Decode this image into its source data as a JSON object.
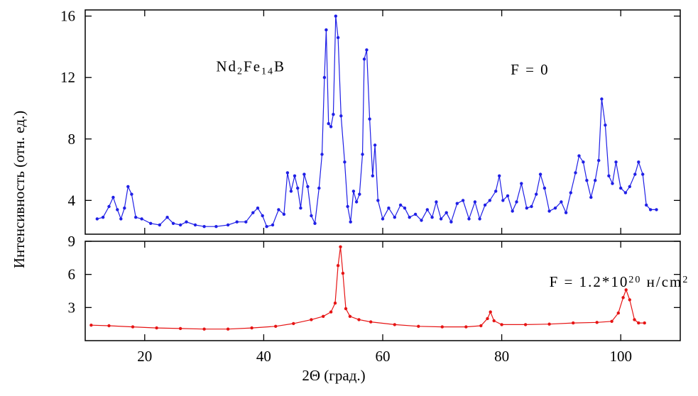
{
  "chart_data": {
    "type": "line",
    "xlabel": "2Θ (град.)",
    "ylabel": "Интенсивность (отн. ед.)",
    "xlim": [
      10,
      110
    ],
    "x_ticks": [
      20,
      40,
      60,
      80,
      100
    ],
    "grid": false,
    "panels": [
      {
        "name": "top",
        "ylim": [
          1.8,
          16.4
        ],
        "y_ticks": [
          4,
          8,
          12,
          16
        ],
        "annotations": [
          {
            "kind": "formula",
            "parts": [
              {
                "text": "Nd",
                "shift": "none"
              },
              {
                "text": "2",
                "shift": "sub"
              },
              {
                "text": "Fe",
                "shift": "none"
              },
              {
                "text": "14",
                "shift": "sub"
              },
              {
                "text": "B",
                "shift": "none"
              }
            ],
            "x": 32,
            "y": 12.4
          },
          {
            "kind": "plain",
            "parts": [
              {
                "text": "F = 0",
                "shift": "none"
              }
            ],
            "x": 81.5,
            "y": 12.2
          }
        ],
        "series": [
          {
            "name": "",
            "color": "#1f1fe6",
            "points": [
              [
                12,
                2.8
              ],
              [
                13,
                2.9
              ],
              [
                14,
                3.6
              ],
              [
                14.7,
                4.2
              ],
              [
                15.4,
                3.4
              ],
              [
                16,
                2.8
              ],
              [
                16.6,
                3.5
              ],
              [
                17.2,
                4.9
              ],
              [
                17.8,
                4.4
              ],
              [
                18.5,
                2.9
              ],
              [
                19.5,
                2.8
              ],
              [
                21,
                2.5
              ],
              [
                22.5,
                2.4
              ],
              [
                23.8,
                2.9
              ],
              [
                24.8,
                2.5
              ],
              [
                26,
                2.4
              ],
              [
                27,
                2.6
              ],
              [
                28.5,
                2.4
              ],
              [
                30,
                2.3
              ],
              [
                32,
                2.3
              ],
              [
                34,
                2.4
              ],
              [
                35.5,
                2.6
              ],
              [
                37,
                2.6
              ],
              [
                38.2,
                3.2
              ],
              [
                39,
                3.5
              ],
              [
                39.8,
                3.0
              ],
              [
                40.5,
                2.3
              ],
              [
                41.5,
                2.4
              ],
              [
                42.5,
                3.4
              ],
              [
                43.4,
                3.1
              ],
              [
                44,
                5.8
              ],
              [
                44.6,
                4.6
              ],
              [
                45.2,
                5.6
              ],
              [
                45.7,
                4.8
              ],
              [
                46.2,
                3.5
              ],
              [
                46.8,
                5.7
              ],
              [
                47.4,
                4.9
              ],
              [
                48,
                3.0
              ],
              [
                48.6,
                2.5
              ],
              [
                49.3,
                4.8
              ],
              [
                49.8,
                7.0
              ],
              [
                50.2,
                12.0
              ],
              [
                50.5,
                15.1
              ],
              [
                50.9,
                9.0
              ],
              [
                51.3,
                8.8
              ],
              [
                51.7,
                9.6
              ],
              [
                52.1,
                16.0
              ],
              [
                52.5,
                14.6
              ],
              [
                53,
                9.5
              ],
              [
                53.6,
                6.5
              ],
              [
                54.1,
                3.6
              ],
              [
                54.6,
                2.6
              ],
              [
                55.1,
                4.6
              ],
              [
                55.6,
                3.9
              ],
              [
                56.1,
                4.4
              ],
              [
                56.6,
                7.0
              ],
              [
                56.9,
                13.2
              ],
              [
                57.3,
                13.8
              ],
              [
                57.8,
                9.3
              ],
              [
                58.3,
                5.6
              ],
              [
                58.7,
                7.6
              ],
              [
                59.2,
                4.0
              ],
              [
                60,
                2.8
              ],
              [
                61,
                3.5
              ],
              [
                62,
                2.9
              ],
              [
                63,
                3.7
              ],
              [
                63.7,
                3.5
              ],
              [
                64.5,
                2.9
              ],
              [
                65.5,
                3.1
              ],
              [
                66.5,
                2.7
              ],
              [
                67.5,
                3.4
              ],
              [
                68.3,
                2.9
              ],
              [
                69,
                3.9
              ],
              [
                69.8,
                2.8
              ],
              [
                70.7,
                3.2
              ],
              [
                71.5,
                2.6
              ],
              [
                72.5,
                3.8
              ],
              [
                73.5,
                4.0
              ],
              [
                74.5,
                2.8
              ],
              [
                75.5,
                3.9
              ],
              [
                76.3,
                2.8
              ],
              [
                77.2,
                3.7
              ],
              [
                78,
                4.0
              ],
              [
                79,
                4.6
              ],
              [
                79.6,
                5.6
              ],
              [
                80.2,
                4.0
              ],
              [
                81,
                4.3
              ],
              [
                81.8,
                3.3
              ],
              [
                82.5,
                3.9
              ],
              [
                83.3,
                5.1
              ],
              [
                84.2,
                3.5
              ],
              [
                85,
                3.6
              ],
              [
                85.8,
                4.4
              ],
              [
                86.5,
                5.7
              ],
              [
                87.2,
                4.8
              ],
              [
                88,
                3.3
              ],
              [
                89,
                3.5
              ],
              [
                90,
                3.9
              ],
              [
                90.8,
                3.2
              ],
              [
                91.6,
                4.5
              ],
              [
                92.4,
                5.8
              ],
              [
                93,
                6.9
              ],
              [
                93.7,
                6.5
              ],
              [
                94.3,
                5.3
              ],
              [
                95,
                4.2
              ],
              [
                95.7,
                5.3
              ],
              [
                96.3,
                6.6
              ],
              [
                96.8,
                10.6
              ],
              [
                97.4,
                8.9
              ],
              [
                98,
                5.6
              ],
              [
                98.6,
                5.1
              ],
              [
                99.2,
                6.5
              ],
              [
                100,
                4.8
              ],
              [
                100.8,
                4.5
              ],
              [
                101.5,
                4.9
              ],
              [
                102.4,
                5.7
              ],
              [
                103,
                6.5
              ],
              [
                103.7,
                5.7
              ],
              [
                104.3,
                3.7
              ],
              [
                105,
                3.4
              ],
              [
                106,
                3.4
              ]
            ]
          }
        ]
      },
      {
        "name": "bottom",
        "ylim": [
          0,
          9
        ],
        "y_ticks": [
          3,
          6,
          9
        ],
        "annotations": [
          {
            "kind": "formula",
            "parts": [
              {
                "text": "F = 1.2*10",
                "shift": "none"
              },
              {
                "text": "20",
                "shift": "sup"
              },
              {
                "text": " н/cm",
                "shift": "none"
              },
              {
                "text": "2",
                "shift": "sup"
              }
            ],
            "x": 88,
            "y": 4.9
          }
        ],
        "series": [
          {
            "name": "",
            "color": "#e61414",
            "points": [
              [
                11,
                1.4
              ],
              [
                14,
                1.35
              ],
              [
                18,
                1.25
              ],
              [
                22,
                1.15
              ],
              [
                26,
                1.1
              ],
              [
                30,
                1.05
              ],
              [
                34,
                1.05
              ],
              [
                38,
                1.15
              ],
              [
                42,
                1.3
              ],
              [
                45,
                1.55
              ],
              [
                48,
                1.9
              ],
              [
                50,
                2.2
              ],
              [
                51.3,
                2.6
              ],
              [
                52,
                3.4
              ],
              [
                52.5,
                6.8
              ],
              [
                52.9,
                8.5
              ],
              [
                53.3,
                6.1
              ],
              [
                53.8,
                2.9
              ],
              [
                54.5,
                2.2
              ],
              [
                56,
                1.9
              ],
              [
                58,
                1.7
              ],
              [
                62,
                1.45
              ],
              [
                66,
                1.3
              ],
              [
                70,
                1.25
              ],
              [
                74,
                1.25
              ],
              [
                76.5,
                1.35
              ],
              [
                77.6,
                2.0
              ],
              [
                78.1,
                2.6
              ],
              [
                78.7,
                1.8
              ],
              [
                80,
                1.45
              ],
              [
                84,
                1.45
              ],
              [
                88,
                1.5
              ],
              [
                92,
                1.6
              ],
              [
                96,
                1.65
              ],
              [
                98.5,
                1.75
              ],
              [
                99.6,
                2.5
              ],
              [
                100.4,
                3.9
              ],
              [
                100.9,
                4.6
              ],
              [
                101.5,
                3.7
              ],
              [
                102.3,
                1.9
              ],
              [
                103,
                1.6
              ],
              [
                104,
                1.6
              ]
            ]
          }
        ]
      }
    ]
  }
}
